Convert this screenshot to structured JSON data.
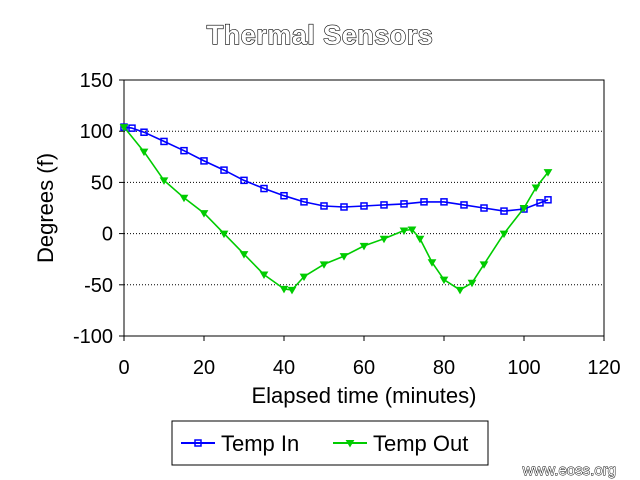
{
  "chart_data": {
    "type": "line",
    "title": "Thermal Sensors",
    "xlabel": "Elapsed time (minutes)",
    "ylabel": "Degrees (f)",
    "xlim": [
      0,
      120
    ],
    "ylim": [
      -100,
      150
    ],
    "x_ticks": [
      "0",
      "20",
      "40",
      "60",
      "80",
      "100",
      "120"
    ],
    "y_ticks": [
      "150",
      "100",
      "50",
      "0",
      "-50",
      "-100"
    ],
    "grid": "horizontal dotted",
    "legend_position": "bottom",
    "series": [
      {
        "name": "Temp In",
        "color": "#0000ff",
        "marker": "square",
        "x": [
          0,
          2,
          5,
          10,
          15,
          20,
          25,
          30,
          35,
          40,
          45,
          50,
          55,
          60,
          65,
          70,
          75,
          80,
          85,
          90,
          95,
          100,
          104,
          106
        ],
        "y": [
          104,
          103,
          99,
          90,
          81,
          71,
          62,
          52,
          44,
          37,
          31,
          27,
          26,
          27,
          28,
          29,
          31,
          31,
          28,
          25,
          22,
          24,
          30,
          33
        ]
      },
      {
        "name": "Temp Out",
        "color": "#00cc00",
        "marker": "triangle-down",
        "x": [
          0,
          5,
          10,
          15,
          20,
          25,
          30,
          35,
          40,
          42,
          45,
          50,
          55,
          60,
          65,
          70,
          72,
          74,
          77,
          80,
          84,
          87,
          90,
          95,
          100,
          103,
          106
        ],
        "y": [
          104,
          80,
          52,
          35,
          20,
          0,
          -20,
          -40,
          -54,
          -55,
          -42,
          -30,
          -22,
          -12,
          -5,
          3,
          4,
          -5,
          -28,
          -45,
          -55,
          -48,
          -30,
          0,
          25,
          45,
          60
        ]
      }
    ]
  },
  "legend": {
    "items": [
      {
        "label": "Temp In"
      },
      {
        "label": "Temp Out"
      }
    ]
  },
  "credit": "www.eoss.org"
}
